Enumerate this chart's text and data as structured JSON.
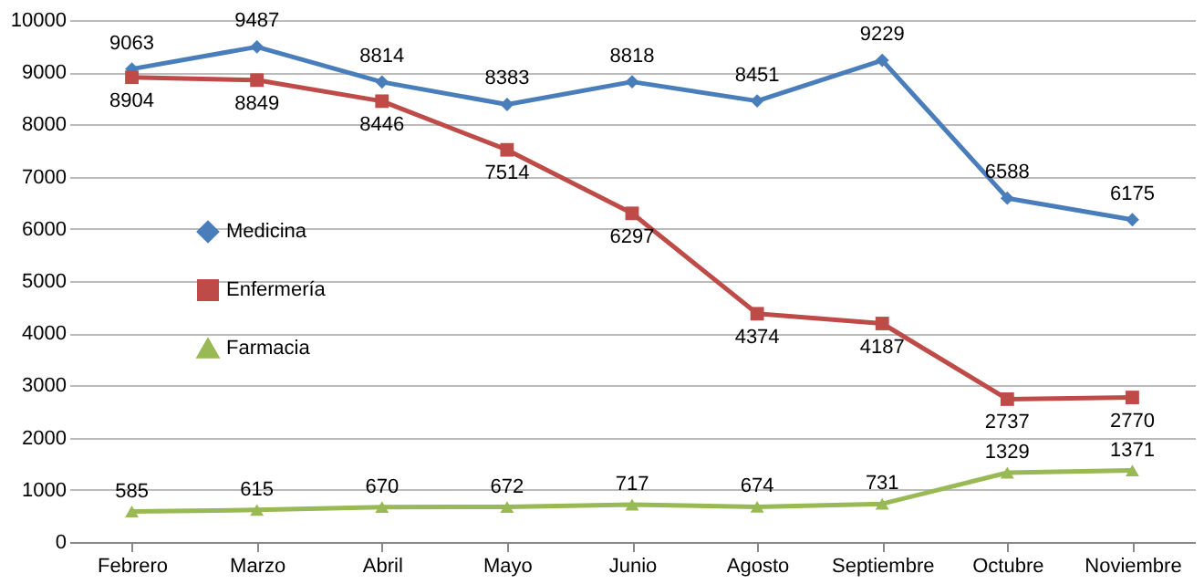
{
  "chart_data": {
    "type": "line",
    "categories": [
      "Febrero",
      "Marzo",
      "Abril",
      "Mayo",
      "Junio",
      "Agosto",
      "Septiembre",
      "Octubre",
      "Noviembre"
    ],
    "series": [
      {
        "name": "Medicina",
        "color": "#4a7ebb",
        "marker": "diamond",
        "values": [
          9063,
          9487,
          8814,
          8383,
          8818,
          8451,
          9229,
          6588,
          6175
        ]
      },
      {
        "name": "Enfermería",
        "color": "#be4b48",
        "marker": "square",
        "values": [
          8904,
          8849,
          8446,
          7514,
          6297,
          4374,
          4187,
          2737,
          2770
        ]
      },
      {
        "name": "Farmacia",
        "color": "#98b954",
        "marker": "triangle",
        "values": [
          585,
          615,
          670,
          672,
          717,
          674,
          731,
          1329,
          1371
        ]
      }
    ],
    "ylim": [
      0,
      10000
    ],
    "yticks": [
      0,
      1000,
      2000,
      3000,
      4000,
      5000,
      6000,
      7000,
      8000,
      9000,
      10000
    ],
    "grid": "y",
    "legend": "left",
    "data_labels": true,
    "line_style": "solid"
  }
}
